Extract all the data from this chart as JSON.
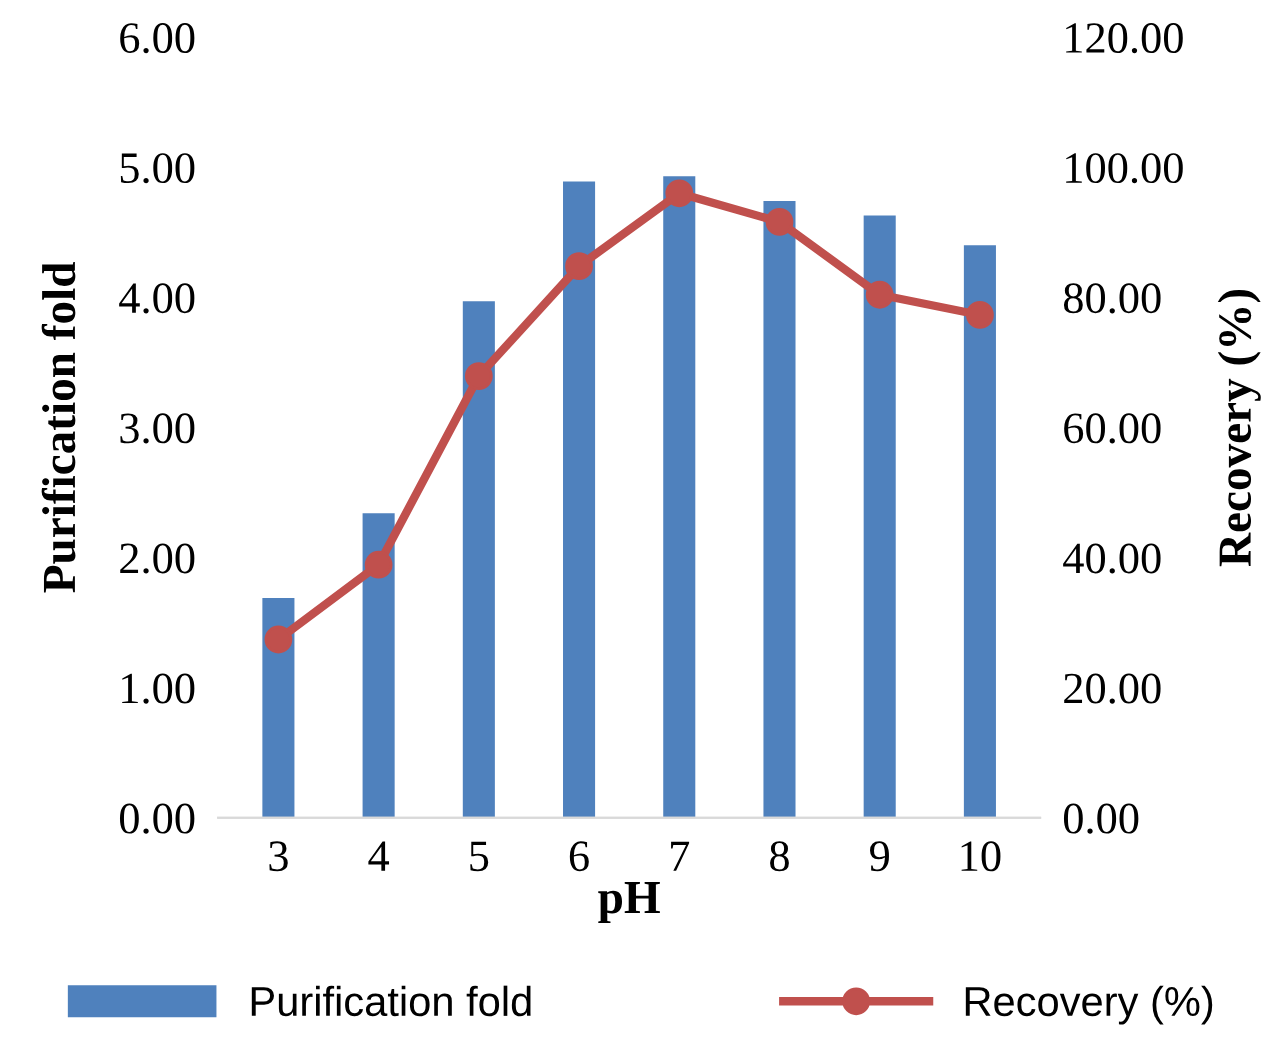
{
  "chart_data": {
    "type": "bar",
    "xlabel": "pH",
    "ylabel": "Purification fold",
    "y2label": "Recovery (%)",
    "categories": [
      "3",
      "4",
      "5",
      "6",
      "7",
      "8",
      "9",
      "10"
    ],
    "series": [
      {
        "name": "Purification fold",
        "color": "#4f81bd",
        "values": [
          1.69,
          2.34,
          3.97,
          4.89,
          4.93,
          4.74,
          4.63,
          4.4
        ]
      },
      {
        "name": "Recovery (%)",
        "type": "line",
        "axis": "y2",
        "color": "#c0504d",
        "marker": "circle",
        "line_style": "solid",
        "values": [
          27.4,
          38.9,
          67.9,
          84.8,
          96.0,
          91.6,
          80.4,
          77.3
        ]
      }
    ],
    "ylim": [
      0,
      6
    ],
    "yticks": [
      {
        "value": 0,
        "label": "0.00"
      },
      {
        "value": 1,
        "label": "1.00"
      },
      {
        "value": 2,
        "label": "2.00"
      },
      {
        "value": 3,
        "label": "3.00"
      },
      {
        "value": 4,
        "label": "4.00"
      },
      {
        "value": 5,
        "label": "5.00"
      },
      {
        "value": 6,
        "label": "6.00"
      }
    ],
    "y2lim": [
      0,
      120
    ],
    "y2ticks": [
      {
        "value": 0,
        "label": "0.00"
      },
      {
        "value": 20,
        "label": "20.00"
      },
      {
        "value": 40,
        "label": "40.00"
      },
      {
        "value": 60,
        "label": "60.00"
      },
      {
        "value": 80,
        "label": "80.00"
      },
      {
        "value": 100,
        "label": "100.00"
      },
      {
        "value": 120,
        "label": "120.00"
      }
    ],
    "grid": false,
    "legend": "bottom"
  }
}
